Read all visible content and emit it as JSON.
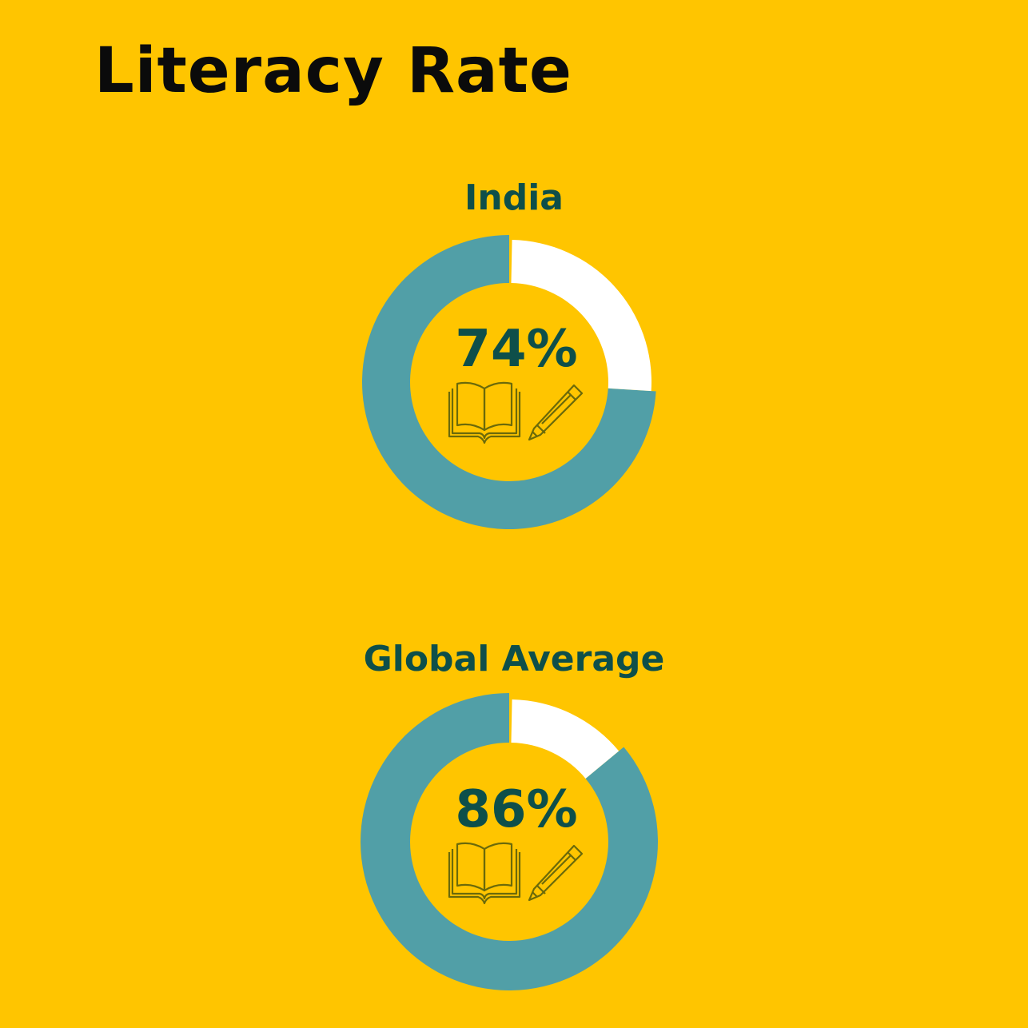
{
  "title": "Literacy Rate",
  "colors": {
    "background": "#FFC500",
    "filled": "#519FA7",
    "remaining": "#FFFFFF",
    "text": "#0E4F4A",
    "icon": "#6B6A0A"
  },
  "chart_data": [
    {
      "type": "pie",
      "title": "India",
      "values": [
        74,
        26
      ],
      "value_label": "74%",
      "icons": [
        "open-book-icon",
        "pencil-icon"
      ]
    },
    {
      "type": "pie",
      "title": "Global Average",
      "values": [
        86,
        14
      ],
      "value_label": "86%",
      "icons": [
        "open-book-icon",
        "pencil-icon"
      ]
    }
  ]
}
